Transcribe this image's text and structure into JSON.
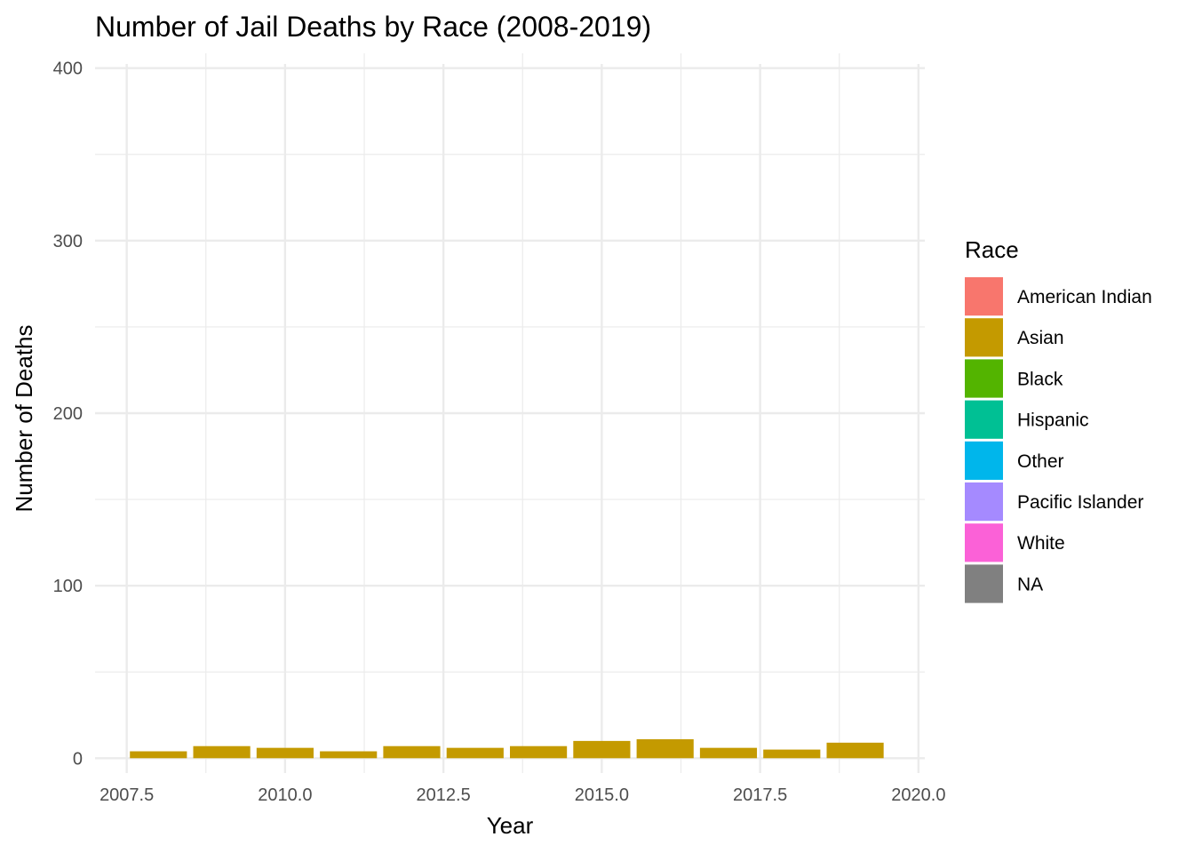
{
  "chart_data": {
    "type": "bar",
    "stacked": true,
    "title": "Number of Jail Deaths by Race (2008-2019)",
    "xlabel": "Year",
    "ylabel": "Number of Deaths",
    "xlim": [
      2007.5,
      2020.0
    ],
    "ylim": [
      0,
      400
    ],
    "x_ticks": [
      "2007.5",
      "2010.0",
      "2012.5",
      "2015.0",
      "2017.5",
      "2020.0"
    ],
    "x_tick_values": [
      2007.5,
      2010.0,
      2012.5,
      2015.0,
      2017.5,
      2020.0
    ],
    "y_ticks": [
      "0",
      "100",
      "200",
      "300",
      "400"
    ],
    "y_tick_values": [
      0,
      100,
      200,
      300,
      400
    ],
    "grid": true,
    "x": [
      2008,
      2009,
      2010,
      2011,
      2012,
      2013,
      2014,
      2015,
      2016,
      2017,
      2018,
      2019
    ],
    "series": [
      {
        "name": "American Indian",
        "color": "#F8766D",
        "values": [
          0,
          0,
          0,
          0,
          0,
          0,
          0,
          0,
          0,
          0,
          0,
          0
        ]
      },
      {
        "name": "Asian",
        "color": "#C49A00",
        "values": [
          4,
          7,
          6,
          4,
          7,
          6,
          7,
          10,
          11,
          6,
          5,
          9
        ]
      },
      {
        "name": "Black",
        "color": "#53B400",
        "values": [
          0,
          0,
          0,
          0,
          0,
          0,
          0,
          0,
          0,
          0,
          0,
          0
        ]
      },
      {
        "name": "Hispanic",
        "color": "#00C094",
        "values": [
          0,
          0,
          0,
          0,
          0,
          0,
          0,
          0,
          0,
          0,
          0,
          0
        ]
      },
      {
        "name": "Other",
        "color": "#00B6EB",
        "values": [
          0,
          0,
          0,
          0,
          0,
          0,
          0,
          0,
          0,
          0,
          0,
          0
        ]
      },
      {
        "name": "Pacific Islander",
        "color": "#A58AFF",
        "values": [
          0,
          0,
          0,
          0,
          0,
          0,
          0,
          0,
          0,
          0,
          0,
          0
        ]
      },
      {
        "name": "White",
        "color": "#FB61D7",
        "values": [
          0,
          0,
          0,
          0,
          0,
          0,
          0,
          0,
          0,
          0,
          0,
          0
        ]
      },
      {
        "name": "NA",
        "color": "#808080",
        "values": [
          0,
          0,
          0,
          0,
          0,
          0,
          0,
          0,
          0,
          0,
          0,
          0
        ]
      }
    ],
    "legend": {
      "title": "Race",
      "position": "right"
    }
  }
}
